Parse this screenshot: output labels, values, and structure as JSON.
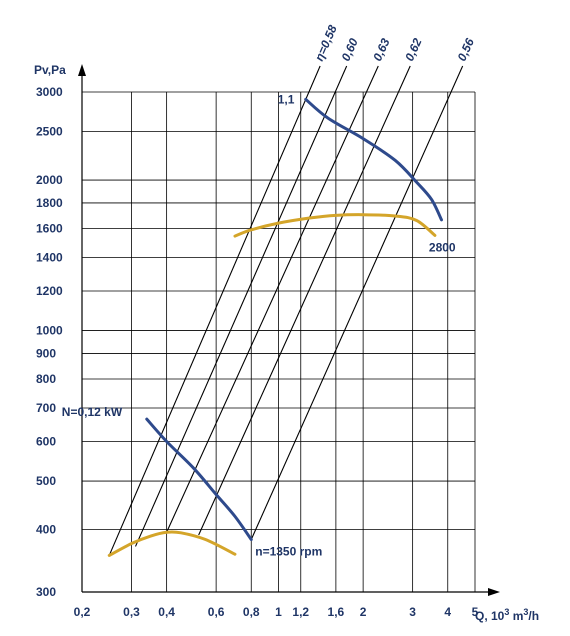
{
  "chart_data": {
    "type": "line",
    "x_scale": "log",
    "y_scale": "log",
    "xlim": [
      0.2,
      5
    ],
    "ylim": [
      300,
      3000
    ],
    "xlabel_prefix": "Q, 10",
    "xlabel_exp1": "3",
    "xlabel_mid": " m",
    "xlabel_exp2": "3",
    "xlabel_suffix": "/h",
    "ylabel": "Pv,Pa",
    "x_ticks": [
      {
        "v": 0.2,
        "t": "0,2"
      },
      {
        "v": 0.3,
        "t": "0,3"
      },
      {
        "v": 0.4,
        "t": "0,4"
      },
      {
        "v": 0.6,
        "t": "0,6"
      },
      {
        "v": 0.8,
        "t": "0,8"
      },
      {
        "v": 1,
        "t": "1"
      },
      {
        "v": 1.2,
        "t": "1,2"
      },
      {
        "v": 1.6,
        "t": "1,6"
      },
      {
        "v": 2,
        "t": "2"
      },
      {
        "v": 3,
        "t": "3"
      },
      {
        "v": 4,
        "t": "4"
      },
      {
        "v": 5,
        "t": "5"
      }
    ],
    "x_gridlines": [
      0.3,
      0.4,
      0.6,
      0.8,
      1,
      1.2,
      1.6,
      2,
      3,
      4,
      5
    ],
    "y_ticks": [
      {
        "v": 300,
        "t": "300"
      },
      {
        "v": 400,
        "t": "400"
      },
      {
        "v": 500,
        "t": "500"
      },
      {
        "v": 600,
        "t": "600"
      },
      {
        "v": 700,
        "t": "700"
      },
      {
        "v": 800,
        "t": "800"
      },
      {
        "v": 900,
        "t": "900"
      },
      {
        "v": 1000,
        "t": "1000"
      },
      {
        "v": 1200,
        "t": "1200"
      },
      {
        "v": 1400,
        "t": "1400"
      },
      {
        "v": 1600,
        "t": "1600"
      },
      {
        "v": 1800,
        "t": "1800"
      },
      {
        "v": 2000,
        "t": "2000"
      },
      {
        "v": 2500,
        "t": "2500"
      },
      {
        "v": 3000,
        "t": "3000"
      }
    ],
    "y_gridlines": [
      400,
      500,
      600,
      700,
      800,
      900,
      1000,
      1200,
      1400,
      1600,
      1800,
      2000,
      2500,
      3000
    ],
    "series": [
      {
        "kind": "pressure-low",
        "color": "#d4a52a",
        "points": [
          [
            0.25,
            355
          ],
          [
            0.3,
            375
          ],
          [
            0.35,
            388
          ],
          [
            0.4,
            395
          ],
          [
            0.45,
            394
          ],
          [
            0.55,
            382
          ],
          [
            0.7,
            357
          ]
        ]
      },
      {
        "kind": "pressure-high",
        "color": "#d4a52a",
        "points": [
          [
            0.7,
            1545
          ],
          [
            0.8,
            1590
          ],
          [
            1.0,
            1640
          ],
          [
            1.3,
            1680
          ],
          [
            1.6,
            1700
          ],
          [
            2.0,
            1705
          ],
          [
            2.6,
            1695
          ],
          [
            3.1,
            1660
          ],
          [
            3.6,
            1550
          ]
        ]
      },
      {
        "kind": "power-low",
        "color": "#2e4a8c",
        "points": [
          [
            0.34,
            665
          ],
          [
            0.4,
            600
          ],
          [
            0.5,
            530
          ],
          [
            0.6,
            470
          ],
          [
            0.7,
            425
          ],
          [
            0.8,
            382
          ]
        ]
      },
      {
        "kind": "power-high",
        "color": "#2e4a8c",
        "points": [
          [
            1.25,
            2900
          ],
          [
            1.5,
            2660
          ],
          [
            2.0,
            2420
          ],
          [
            2.6,
            2190
          ],
          [
            3.1,
            1980
          ],
          [
            3.5,
            1830
          ],
          [
            3.8,
            1665
          ]
        ]
      }
    ],
    "efficiency_lines": [
      {
        "label": "η=0,58",
        "from": [
          0.25,
          355
        ],
        "to": [
          1.25,
          2900
        ]
      },
      {
        "label": "0,60",
        "from": [
          0.31,
          370
        ],
        "to": [
          1.55,
          2900
        ]
      },
      {
        "label": "0,63",
        "from": [
          0.4,
          395
        ],
        "to": [
          2.0,
          2900
        ]
      },
      {
        "label": "0,62",
        "from": [
          0.52,
          390
        ],
        "to": [
          2.6,
          2900
        ]
      },
      {
        "label": "0,56",
        "from": [
          0.8,
          382
        ],
        "to": [
          4.0,
          2900
        ]
      }
    ],
    "annotations": [
      {
        "text": "1,1",
        "at": [
          1.25,
          2900
        ]
      },
      {
        "text": "2800",
        "at": [
          3.6,
          1550
        ]
      },
      {
        "text": "N=0,12 kW",
        "at": [
          0.34,
          665
        ]
      },
      {
        "text": "n=1350 rpm",
        "at": [
          0.8,
          382
        ]
      }
    ]
  }
}
